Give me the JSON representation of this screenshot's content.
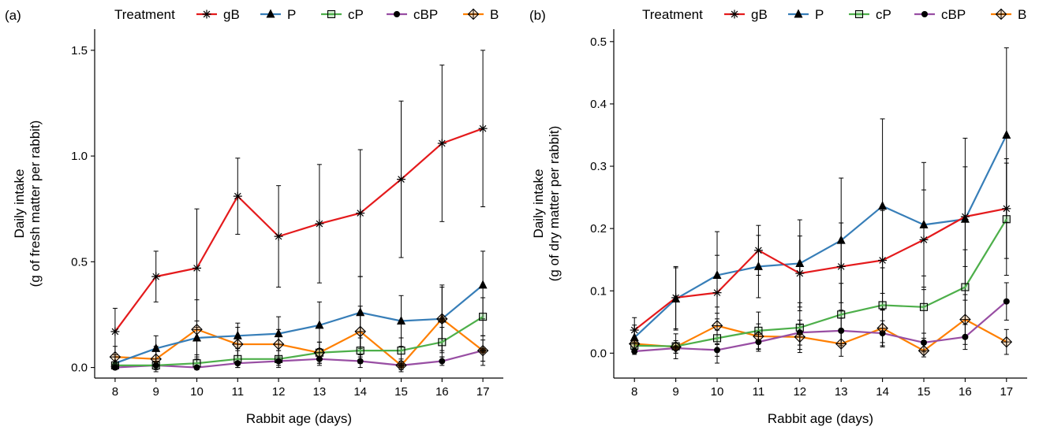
{
  "chart_data": [
    {
      "type": "line",
      "panel_label": "(a)",
      "legend_title": "Treatment",
      "xlabel": "Rabbit age (days)",
      "ylabel": [
        "Daily intake",
        "(g of fresh matter per rabbit)"
      ],
      "x": [
        8,
        9,
        10,
        11,
        12,
        13,
        14,
        15,
        16,
        17
      ],
      "xlim": [
        7.5,
        17.5
      ],
      "ylim": [
        -0.05,
        1.6
      ],
      "yticks": [
        0.0,
        0.5,
        1.0,
        1.5
      ],
      "ytick_labels": [
        "0.0",
        "0.5",
        "1.0",
        "1.5"
      ],
      "series": [
        {
          "name": "gB",
          "color": "#e41a1c",
          "marker": "star",
          "values": [
            0.17,
            0.43,
            0.47,
            0.81,
            0.62,
            0.68,
            0.73,
            0.89,
            1.06,
            1.13
          ],
          "errors": [
            0.11,
            0.12,
            0.28,
            0.18,
            0.24,
            0.28,
            0.3,
            0.37,
            0.37,
            0.37
          ]
        },
        {
          "name": "P",
          "color": "#377eb8",
          "marker": "triangle",
          "values": [
            0.02,
            0.09,
            0.14,
            0.15,
            0.16,
            0.2,
            0.26,
            0.22,
            0.23,
            0.39
          ],
          "errors": [
            0.03,
            0.06,
            0.08,
            0.06,
            0.08,
            0.11,
            0.17,
            0.12,
            0.15,
            0.16
          ]
        },
        {
          "name": "cP",
          "color": "#4daf4a",
          "marker": "square",
          "values": [
            0.01,
            0.01,
            0.02,
            0.04,
            0.04,
            0.07,
            0.08,
            0.08,
            0.12,
            0.24
          ],
          "errors": [
            0.01,
            0.02,
            0.03,
            0.04,
            0.04,
            0.05,
            0.06,
            0.06,
            0.07,
            0.09
          ]
        },
        {
          "name": "cBP",
          "color": "#984ea3",
          "marker": "circle",
          "values": [
            0.0,
            0.01,
            0.0,
            0.02,
            0.03,
            0.04,
            0.03,
            0.01,
            0.03,
            0.08
          ],
          "errors": [
            0.01,
            0.01,
            0.01,
            0.02,
            0.02,
            0.03,
            0.03,
            0.02,
            0.02,
            0.05
          ]
        },
        {
          "name": "B",
          "color": "#ff7f00",
          "marker": "diamond",
          "values": [
            0.05,
            0.04,
            0.18,
            0.11,
            0.11,
            0.07,
            0.17,
            0.01,
            0.23,
            0.08
          ],
          "errors": [
            0.05,
            0.06,
            0.14,
            0.08,
            0.07,
            0.05,
            0.12,
            0.03,
            0.16,
            0.07
          ]
        }
      ]
    },
    {
      "type": "line",
      "panel_label": "(b)",
      "legend_title": "Treatment",
      "xlabel": "Rabbit age (days)",
      "ylabel": [
        "Daily intake",
        "(g of dry matter per rabbit)"
      ],
      "x": [
        8,
        9,
        10,
        11,
        12,
        13,
        14,
        15,
        16,
        17
      ],
      "xlim": [
        7.5,
        17.5
      ],
      "ylim": [
        -0.04,
        0.52
      ],
      "yticks": [
        0.0,
        0.1,
        0.2,
        0.3,
        0.4,
        0.5
      ],
      "ytick_labels": [
        "0.0",
        "0.1",
        "0.2",
        "0.3",
        "0.4",
        "0.5"
      ],
      "series": [
        {
          "name": "gB",
          "color": "#e41a1c",
          "marker": "star",
          "values": [
            0.037,
            0.089,
            0.097,
            0.165,
            0.128,
            0.139,
            0.149,
            0.182,
            0.219,
            0.232
          ],
          "errors": [
            0.02,
            0.05,
            0.06,
            0.04,
            0.06,
            0.07,
            0.08,
            0.08,
            0.08,
            0.08
          ]
        },
        {
          "name": "P",
          "color": "#377eb8",
          "marker": "triangle",
          "values": [
            0.025,
            0.087,
            0.125,
            0.139,
            0.144,
            0.181,
            0.236,
            0.206,
            0.215,
            0.35
          ],
          "errors": [
            0.02,
            0.05,
            0.07,
            0.05,
            0.07,
            0.1,
            0.14,
            0.1,
            0.13,
            0.14
          ]
        },
        {
          "name": "cP",
          "color": "#4daf4a",
          "marker": "square",
          "values": [
            0.012,
            0.011,
            0.024,
            0.036,
            0.041,
            0.062,
            0.077,
            0.074,
            0.106,
            0.215
          ],
          "errors": [
            0.01,
            0.02,
            0.04,
            0.03,
            0.04,
            0.05,
            0.06,
            0.05,
            0.06,
            0.09
          ]
        },
        {
          "name": "cBP",
          "color": "#984ea3",
          "marker": "circle",
          "values": [
            0.003,
            0.008,
            0.005,
            0.018,
            0.033,
            0.036,
            0.032,
            0.017,
            0.026,
            0.083
          ],
          "errors": [
            0.005,
            0.008,
            0.01,
            0.015,
            0.02,
            0.02,
            0.02,
            0.015,
            0.02,
            0.03
          ]
        },
        {
          "name": "B",
          "color": "#ff7f00",
          "marker": "diamond",
          "values": [
            0.015,
            0.01,
            0.044,
            0.027,
            0.026,
            0.015,
            0.04,
            0.004,
            0.054,
            0.018
          ],
          "errors": [
            0.01,
            0.01,
            0.03,
            0.02,
            0.02,
            0.02,
            0.03,
            0.01,
            0.04,
            0.02
          ]
        }
      ]
    }
  ]
}
